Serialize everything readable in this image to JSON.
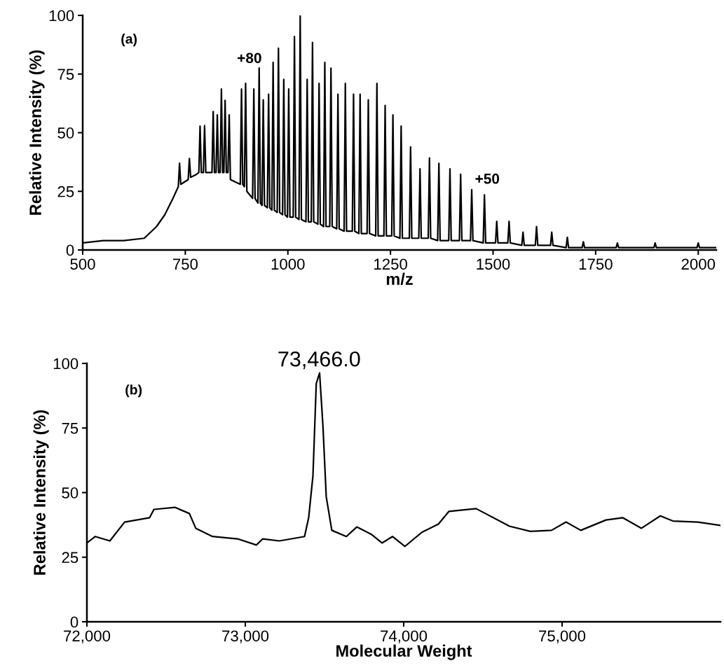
{
  "chart_data": [
    {
      "type": "line",
      "xlabel": "m/z",
      "ylabel": "Relative Intensity (%)",
      "xlim": [
        500,
        2044
      ],
      "xticks": [
        500,
        750,
        1000,
        1250,
        1500,
        1750,
        2000
      ],
      "ylim": [
        0,
        100
      ],
      "yticks": [
        0,
        25,
        50,
        75,
        100
      ],
      "grid": false,
      "legend": false,
      "marker": "none",
      "line_style": "solid",
      "annotations": [
        "(a)",
        {
          "text": "+80",
          "x": 930,
          "y": 77.6
        },
        {
          "text": "+50",
          "x": 1448,
          "y": 25.7
        }
      ],
      "series": [
        {
          "color": "#000000",
          "x": [
            500,
            550,
            600,
            650,
            680,
            700,
            720,
            733,
            736,
            739,
            757,
            760,
            763,
            775,
            783,
            786,
            789,
            794,
            797,
            800,
            815,
            818,
            821,
            825,
            828,
            831,
            835,
            838,
            841,
            844,
            847,
            850,
            854,
            857,
            860,
            884,
            887,
            890,
            894,
            897,
            900,
            914,
            917,
            920,
            927,
            930,
            933,
            937,
            940,
            943,
            950,
            953,
            956,
            961,
            964,
            967,
            974,
            977,
            980,
            987,
            990,
            993,
            999,
            1002,
            1005,
            1013,
            1016,
            1019,
            1027,
            1030,
            1033,
            1044,
            1047,
            1050,
            1057,
            1060,
            1063,
            1073,
            1076,
            1079,
            1087,
            1090,
            1093,
            1102,
            1105,
            1108,
            1119,
            1122,
            1125,
            1137,
            1140,
            1143,
            1157,
            1160,
            1163,
            1173,
            1176,
            1179,
            1193,
            1196,
            1199,
            1214,
            1217,
            1220,
            1234,
            1237,
            1240,
            1253,
            1256,
            1259,
            1273,
            1276,
            1279,
            1296,
            1299,
            1302,
            1319,
            1322,
            1325,
            1342,
            1345,
            1348,
            1365,
            1368,
            1371,
            1392,
            1395,
            1398,
            1418,
            1421,
            1424,
            1445,
            1448,
            1451,
            1476,
            1479,
            1482,
            1506,
            1509,
            1512,
            1536,
            1539,
            1542,
            1570,
            1573,
            1576,
            1603,
            1606,
            1609,
            1640,
            1643,
            1646,
            1678,
            1681,
            1684,
            1717,
            1720,
            1723,
            1800,
            1803,
            1806,
            1892,
            1895,
            1898,
            1997,
            2000,
            2003,
            2044
          ],
          "values": [
            3,
            4,
            4,
            5,
            10,
            15,
            22,
            27,
            37,
            28,
            30,
            39,
            31,
            32,
            33,
            52.8,
            33,
            33,
            53,
            33,
            33,
            59,
            33,
            33,
            57.6,
            33,
            33,
            68.6,
            33,
            33,
            63.8,
            33,
            33,
            57.6,
            30,
            28,
            68.6,
            28,
            27,
            71,
            25,
            22,
            68.6,
            22,
            20,
            77.6,
            20,
            19,
            64,
            19,
            18,
            66.4,
            18,
            17,
            80,
            17,
            16,
            86,
            16,
            15,
            72.7,
            15,
            14,
            68.6,
            14,
            14,
            91,
            14,
            13,
            100,
            13,
            12,
            72.7,
            12,
            12,
            88.5,
            12,
            11,
            71,
            11,
            10,
            80,
            10,
            10,
            77.5,
            10,
            9,
            66.4,
            9,
            8,
            71,
            8,
            8,
            66.4,
            8,
            7,
            66.4,
            7,
            7,
            64,
            7,
            6,
            71,
            6,
            6,
            61.6,
            6,
            6,
            57.6,
            6,
            5,
            52.8,
            5,
            5,
            43.9,
            5,
            5,
            34.6,
            5,
            5,
            39.2,
            5,
            4,
            36.9,
            4,
            4,
            34.6,
            4,
            4,
            32.3,
            4,
            4,
            25.7,
            4,
            3,
            23.5,
            3,
            3,
            12.2,
            3,
            3,
            12.2,
            3,
            2,
            7.6,
            2,
            2,
            10,
            2,
            2,
            7.6,
            2,
            1,
            5.4,
            1,
            1,
            3.5,
            1,
            1,
            3,
            1,
            1,
            3,
            1,
            1,
            3,
            1,
            1
          ]
        }
      ]
    },
    {
      "type": "line",
      "xlabel": "Molecular Weight",
      "ylabel": "Relative Intensity (%)",
      "xlim": [
        72000,
        76000
      ],
      "xticks": [
        {
          "value": 72000,
          "label": "72,000"
        },
        {
          "value": 73000,
          "label": "73,000"
        },
        {
          "value": 74000,
          "label": "74,000"
        },
        {
          "value": 75000,
          "label": "75,000"
        }
      ],
      "ylim": [
        0,
        100
      ],
      "yticks": [
        0,
        25,
        50,
        75,
        100
      ],
      "grid": false,
      "legend": false,
      "marker": "none",
      "line_style": "solid",
      "annotations": [
        "(b)",
        {
          "text": "73,466.0",
          "x": 73466,
          "y": 96
        }
      ],
      "series": [
        {
          "color": "#000000",
          "x": [
            72000,
            72053,
            72145,
            72238,
            72396,
            72423,
            72555,
            72647,
            72687,
            72793,
            72951,
            73070,
            73110,
            73215,
            73374,
            73400,
            73427,
            73448,
            73469,
            73490,
            73511,
            73546,
            73638,
            73704,
            73797,
            73863,
            73929,
            74008,
            74114,
            74219,
            74285,
            74457,
            74668,
            74800,
            74933,
            75025,
            75118,
            75277,
            75382,
            75501,
            75620,
            75699,
            75857,
            76000
          ],
          "values": [
            30.5,
            33,
            31.3,
            38.6,
            40.3,
            43.5,
            44.3,
            41.9,
            36.2,
            33,
            32.1,
            29.7,
            32.1,
            31.3,
            33,
            40.3,
            56.5,
            92.2,
            96.3,
            76,
            48.4,
            35.4,
            33,
            36.7,
            33.8,
            30.5,
            33,
            29.2,
            34.6,
            37.8,
            42.7,
            43.8,
            37,
            35,
            35.4,
            38.6,
            35.4,
            39.4,
            40.3,
            36.2,
            41,
            39,
            38.6,
            37.3
          ]
        }
      ]
    }
  ]
}
